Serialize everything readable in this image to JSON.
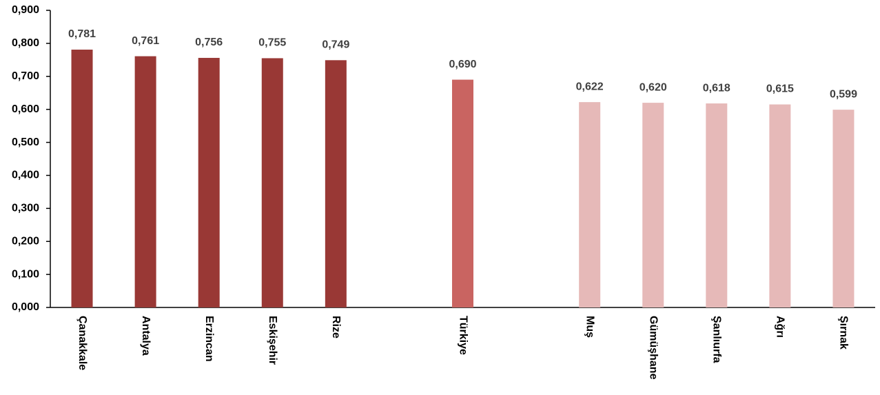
{
  "chart_data": {
    "type": "bar",
    "categories": [
      "Çanakkale",
      "Antalya",
      "Erzincan",
      "Eskişehir",
      "Rize",
      null,
      "Türkiye",
      null,
      "Muş",
      "Gümüşhane",
      "Şanlıurfa",
      "Ağrı",
      "Şırnak"
    ],
    "values": [
      0.781,
      0.761,
      0.756,
      0.755,
      0.749,
      null,
      0.69,
      null,
      0.622,
      0.62,
      0.618,
      0.615,
      0.599
    ],
    "value_labels": [
      "0,781",
      "0,761",
      "0,756",
      "0,755",
      "0,749",
      null,
      "0,690",
      null,
      "0,622",
      "0,620",
      "0,618",
      "0,615",
      "0,599"
    ],
    "colors": [
      "#993835",
      "#993835",
      "#993835",
      "#993835",
      "#993835",
      null,
      "#c96461",
      null,
      "#e6b9b8",
      "#e6b9b8",
      "#e6b9b8",
      "#e6b9b8",
      "#e6b9b8"
    ],
    "ylim": [
      0,
      0.9
    ],
    "yticks": [
      {
        "value": 0,
        "label": "0,000"
      },
      {
        "value": 0.1,
        "label": "0,100"
      },
      {
        "value": 0.2,
        "label": "0,200"
      },
      {
        "value": 0.3,
        "label": "0,300"
      },
      {
        "value": 0.4,
        "label": "0,400"
      },
      {
        "value": 0.5,
        "label": "0,500"
      },
      {
        "value": 0.6,
        "label": "0,600"
      },
      {
        "value": 0.7,
        "label": "0,700"
      },
      {
        "value": 0.8,
        "label": "0,800"
      },
      {
        "value": 0.9,
        "label": "0,900"
      }
    ],
    "grid": false
  }
}
